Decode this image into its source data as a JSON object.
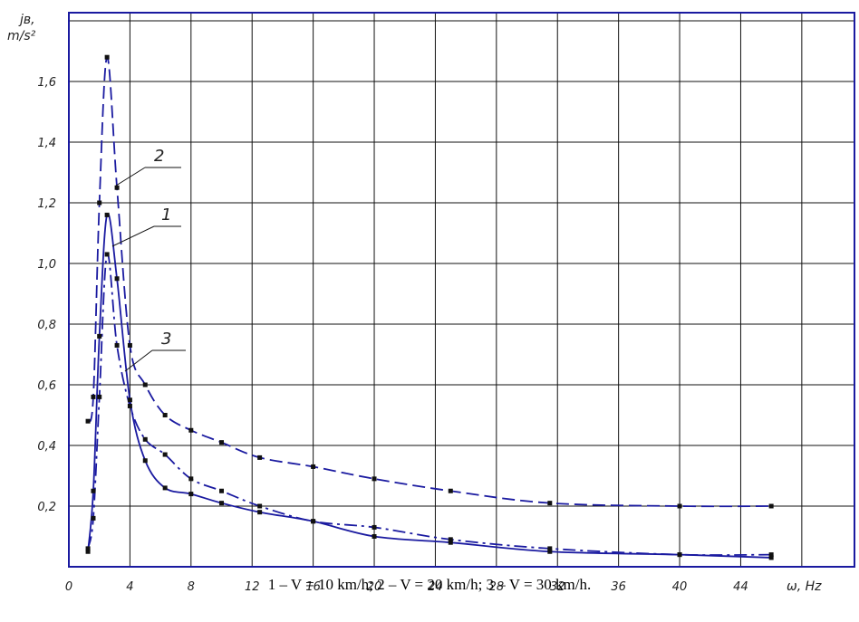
{
  "chart_data": {
    "type": "line",
    "title": "",
    "ylabel": "jв, m/s²",
    "ylabel_line1": "jв,",
    "ylabel_line2": "m/s²",
    "xlabel": "ω, Hz",
    "xlim": [
      0,
      48
    ],
    "ylim": [
      0,
      1.8
    ],
    "x_ticks": [
      0,
      4,
      8,
      12,
      16,
      20,
      24,
      28,
      32,
      36,
      40,
      44
    ],
    "x_tick_labels": [
      "0",
      "4",
      "8",
      "12",
      "16",
      "20",
      "24",
      "28",
      "32",
      "36",
      "40",
      "44"
    ],
    "y_ticks": [
      0.2,
      0.4,
      0.6,
      0.8,
      1.0,
      1.2,
      1.4,
      1.6
    ],
    "y_tick_labels": [
      "0,2",
      "0,4",
      "0,6",
      "0,8",
      "1,0",
      "1,2",
      "1,4",
      "1,6"
    ],
    "grid": true,
    "caption": "1 – V = 10 km/h; 2 – V = 20 km/h; 3 – V = 30 km/h.",
    "series": [
      {
        "name": "1",
        "line_style": "solid",
        "color": "#1a1aa0",
        "x": [
          1.25,
          1.6,
          2.0,
          2.5,
          3.15,
          4.0,
          5.0,
          6.3,
          8.0,
          10.0,
          12.5,
          16.0,
          20.0,
          25.0,
          31.5,
          40.0,
          46.0
        ],
        "y": [
          0.05,
          0.25,
          0.76,
          1.16,
          0.95,
          0.55,
          0.35,
          0.26,
          0.24,
          0.21,
          0.18,
          0.15,
          0.1,
          0.08,
          0.05,
          0.04,
          0.03
        ]
      },
      {
        "name": "2",
        "line_style": "dashed",
        "color": "#1a1aa0",
        "x": [
          1.25,
          1.6,
          2.0,
          2.5,
          3.15,
          4.0,
          5.0,
          6.3,
          8.0,
          10.0,
          12.5,
          16.0,
          20.0,
          25.0,
          31.5,
          40.0,
          46.0
        ],
        "y": [
          0.48,
          0.56,
          1.2,
          1.68,
          1.25,
          0.73,
          0.6,
          0.5,
          0.45,
          0.41,
          0.36,
          0.33,
          0.29,
          0.25,
          0.21,
          0.2,
          0.2
        ]
      },
      {
        "name": "3",
        "line_style": "dash-dot",
        "color": "#1a1aa0",
        "x": [
          1.25,
          1.6,
          2.0,
          2.5,
          3.15,
          4.0,
          5.0,
          6.3,
          8.0,
          10.0,
          12.5,
          16.0,
          20.0,
          25.0,
          31.5,
          40.0,
          46.0
        ],
        "y": [
          0.06,
          0.16,
          0.56,
          1.03,
          0.73,
          0.53,
          0.42,
          0.37,
          0.29,
          0.25,
          0.2,
          0.15,
          0.13,
          0.09,
          0.06,
          0.04,
          0.04
        ]
      }
    ]
  }
}
